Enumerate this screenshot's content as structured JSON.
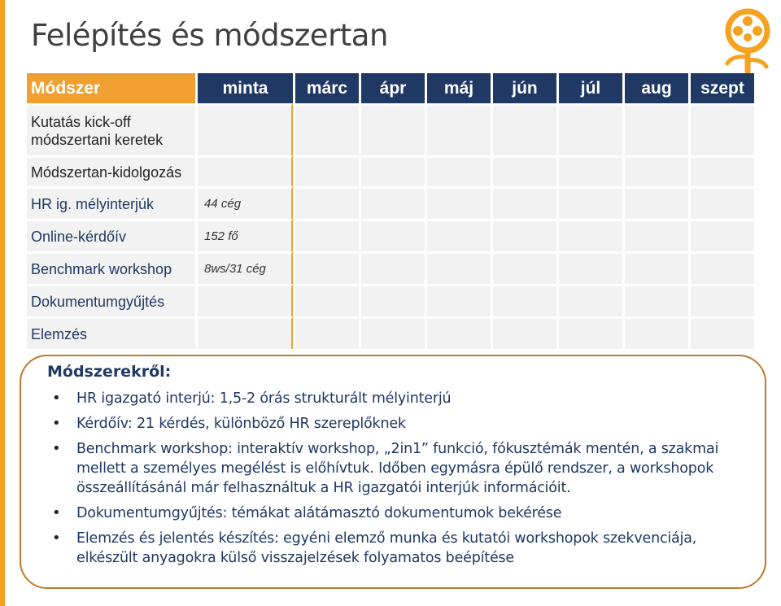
{
  "title": "Felépítés és módszertan",
  "logo": {
    "icon": "tree-logo-icon",
    "color": "#f4a21f"
  },
  "plan": {
    "headers": [
      "Módszer",
      "minta",
      "márc",
      "ápr",
      "máj",
      "jún",
      "júl",
      "aug",
      "szept"
    ],
    "rows": [
      {
        "method": "Kutatás kick-off módszertani keretek",
        "sample": "",
        "style": "plain",
        "weeks": [
          1,
          1,
          0,
          0,
          0,
          0,
          0,
          0,
          0,
          0,
          0,
          0,
          0,
          0
        ],
        "color": "#ffc000"
      },
      {
        "method": "Módszertan-kidolgozás",
        "sample": "",
        "style": "plain",
        "weeks": [
          0,
          0,
          1,
          1,
          1,
          1,
          1,
          1,
          0,
          0,
          0,
          0,
          0,
          0
        ],
        "color": "#ffc000"
      },
      {
        "method": "HR ig. mélyinterjúk",
        "sample": "44 cég",
        "style": "blue",
        "weeks": [
          0,
          0,
          0,
          0,
          1,
          1,
          1,
          1,
          0,
          0,
          0,
          0,
          0,
          0
        ],
        "color": "#92d050"
      },
      {
        "method": "Online-kérdőív",
        "sample": "152 fő",
        "style": "blue",
        "weeks": [
          0,
          0,
          0,
          0,
          0,
          0,
          1,
          1,
          0,
          0,
          0,
          0,
          0,
          0
        ],
        "color": "#92d050"
      },
      {
        "method": "Benchmark workshop",
        "sample": "8ws/31 cég",
        "style": "blue",
        "weeks": [
          0,
          0,
          0,
          0,
          0,
          0,
          0,
          0,
          0,
          1,
          0,
          0,
          0,
          0
        ],
        "color": "#92d050"
      },
      {
        "method": "Dokumentumgyűjtés",
        "sample": "",
        "style": "blue",
        "weeks": [
          0,
          0,
          0,
          1,
          1,
          1,
          1,
          1,
          1,
          1,
          0,
          0,
          0,
          0
        ],
        "color": "#92d050"
      },
      {
        "method": "Elemzés",
        "sample": "",
        "style": "blue",
        "weeks": [
          0,
          0,
          0,
          0,
          0,
          0,
          0,
          0,
          0,
          0,
          1,
          1,
          1,
          1
        ],
        "color": "#ffc000"
      }
    ]
  },
  "notes": {
    "heading": "Módszerekről:",
    "items": [
      "HR igazgató interjú: 1,5-2 órás strukturált mélyinterjú",
      "Kérdőív: 21 kérdés, különböző HR szereplőknek",
      "Benchmark workshop: interaktív workshop, „2in1” funkció, fókusztémák mentén, a szakmai mellett a személyes megélést is előhívtuk. Időben egymásra épülő rendszer, a workshopok összeállításánál már felhasználtuk a HR igazgatói interjúk információit.",
      "Dokumentumgyűjtés: témákat alátámasztó dokumentumok bekérése",
      "Elemzés és jelentés készítés: egyéni elemző munka és kutatói workshopok szekvenciája, elkészült anyagokra külső visszajelzések folyamatos beépítése"
    ]
  }
}
